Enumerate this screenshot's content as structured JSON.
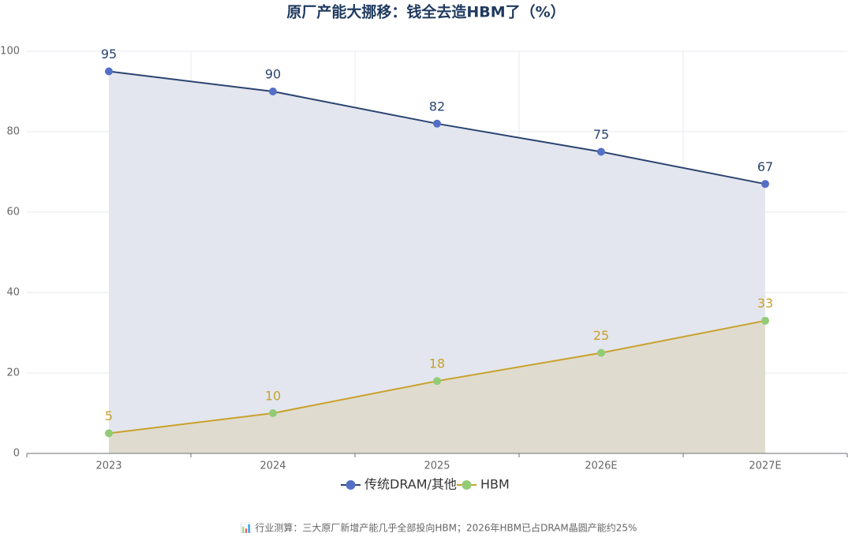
{
  "chart_data": {
    "type": "line",
    "title": "原厂产能大挪移：钱全去造HBM了（%）",
    "categories": [
      "2023",
      "2024",
      "2025",
      "2026E",
      "2027E"
    ],
    "series": [
      {
        "name": "传统DRAM/其他",
        "color": "#2a4470",
        "marker_color": "#5470c6",
        "label_color": "#2a4470",
        "area_color": "#e3e6ee",
        "values": [
          95,
          90,
          82,
          75,
          67
        ]
      },
      {
        "name": "HBM",
        "color": "#c9a12c",
        "marker_color": "#91cc75",
        "label_color": "#c9a12c",
        "area_color": "#dfdccf",
        "values": [
          5,
          10,
          18,
          25,
          33
        ]
      }
    ],
    "ylim": [
      0,
      100
    ],
    "yticks": [
      0,
      20,
      40,
      60,
      80,
      100
    ],
    "grid": true,
    "legend": "bottom",
    "note": "📊 行业测算：三大原厂新增产能几乎全部投向HBM；2026年HBM已占DRAM晶圆产能约25%"
  }
}
